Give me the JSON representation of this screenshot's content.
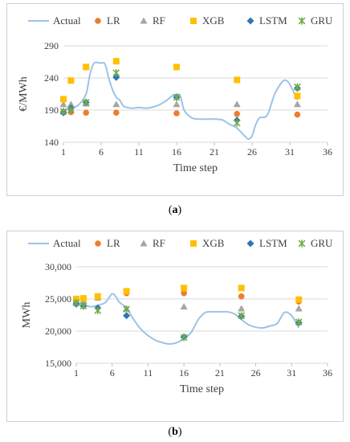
{
  "captions": {
    "a_open": "(",
    "a_letter": "a",
    "a_close": ")",
    "b_open": "(",
    "b_letter": "b",
    "b_close": ")"
  },
  "colors": {
    "Actual": "#9dc3e6",
    "LR": "#ed7d31",
    "RF": "#a5a5a5",
    "XGB": "#ffc000",
    "LSTM": "#2e75b6",
    "GRU": "#70ad47"
  },
  "chart_data": [
    {
      "type": "line+scatter",
      "panel": "a",
      "xlabel": "Time step",
      "ylabel": "€/MWh",
      "xlim": [
        1,
        36
      ],
      "xticks": [
        "1",
        "6",
        "11",
        "16",
        "21",
        "26",
        "31",
        "36"
      ],
      "ylim": [
        140,
        290
      ],
      "yticks": [
        "140",
        "190",
        "240",
        "290"
      ],
      "legend_position": "top",
      "grid": "horizontal",
      "legend": [
        "Actual",
        "LR",
        "RF",
        "XGB",
        "LSTM",
        "GRU"
      ],
      "actual": {
        "name": "Actual",
        "x": [
          1,
          2,
          3,
          4,
          4.5,
          5,
          5.5,
          6,
          6.5,
          7,
          7.5,
          8,
          8.5,
          9,
          10,
          11,
          12,
          13,
          14,
          15,
          15.5,
          16,
          16.5,
          17,
          18,
          19,
          20,
          21,
          22,
          22.5,
          23,
          24,
          25,
          25.5,
          26,
          26.5,
          27,
          28,
          29,
          30,
          30.5,
          31,
          32
        ],
        "y": [
          188,
          193,
          198,
          215,
          245,
          262,
          264,
          263,
          262,
          240,
          222,
          210,
          205,
          196,
          193,
          194,
          193,
          195,
          200,
          208,
          213,
          214,
          212,
          190,
          178,
          176,
          176,
          176,
          175,
          172,
          168,
          162,
          150,
          145,
          150,
          168,
          178,
          182,
          215,
          234,
          236,
          230,
          206
        ]
      },
      "series": [
        {
          "name": "LR",
          "x": [
            1,
            2,
            4,
            8,
            16,
            24,
            32
          ],
          "y": [
            187,
            187,
            186,
            186,
            185,
            184,
            183
          ]
        },
        {
          "name": "RF",
          "x": [
            1,
            2,
            4,
            8,
            16,
            24,
            32
          ],
          "y": [
            199,
            199,
            200,
            199,
            199,
            199,
            199
          ]
        },
        {
          "name": "XGB",
          "x": [
            1,
            2,
            4,
            8,
            16,
            24,
            32
          ],
          "y": [
            207,
            236,
            257,
            266,
            257,
            237,
            212
          ]
        },
        {
          "name": "LSTM",
          "x": [
            1,
            2,
            4,
            8,
            16,
            24,
            32
          ],
          "y": [
            186,
            193,
            202,
            241,
            210,
            174,
            224
          ]
        },
        {
          "name": "GRU",
          "x": [
            1,
            2,
            4,
            8,
            16,
            24,
            32
          ],
          "y": [
            188,
            190,
            202,
            248,
            210,
            170,
            226
          ]
        }
      ]
    },
    {
      "type": "line+scatter",
      "panel": "b",
      "xlabel": "Time step",
      "ylabel": "MWh",
      "xlim": [
        1,
        36
      ],
      "xticks": [
        "1",
        "6",
        "11",
        "16",
        "21",
        "26",
        "31",
        "36"
      ],
      "ylim": [
        15000,
        30000
      ],
      "yticks": [
        "15,000",
        "20,000",
        "25,000",
        "30,000"
      ],
      "legend_position": "top",
      "grid": "horizontal",
      "legend": [
        "Actual",
        "LR",
        "RF",
        "XGB",
        "LSTM",
        "GRU"
      ],
      "actual": {
        "name": "Actual",
        "x": [
          1,
          2,
          3,
          4,
          5,
          5.5,
          6,
          6.5,
          7,
          8,
          9,
          10,
          11,
          12,
          13,
          14,
          15,
          16,
          17,
          18,
          19,
          20,
          21,
          22,
          23,
          24,
          25,
          26,
          27,
          28,
          29,
          30,
          31,
          32
        ],
        "y": [
          24300,
          24100,
          23800,
          24000,
          24400,
          25100,
          25800,
          25400,
          24500,
          23600,
          21800,
          20300,
          19300,
          18600,
          18200,
          18000,
          18200,
          18800,
          19800,
          21800,
          22900,
          23000,
          23000,
          23000,
          22700,
          21800,
          21000,
          20600,
          20500,
          20800,
          21200,
          22900,
          22400,
          20500
        ]
      },
      "series": [
        {
          "name": "LR",
          "x": [
            1,
            2,
            4,
            8,
            16,
            24,
            32
          ],
          "y": [
            24700,
            24800,
            25200,
            25900,
            25900,
            25400,
            24600
          ]
        },
        {
          "name": "RF",
          "x": [
            1,
            2,
            4,
            8,
            16,
            24,
            32
          ],
          "y": [
            24800,
            24700,
            25200,
            23500,
            23800,
            23500,
            23500
          ]
        },
        {
          "name": "XGB",
          "x": [
            1,
            2,
            4,
            8,
            16,
            24,
            32
          ],
          "y": [
            25000,
            25100,
            25400,
            26200,
            26700,
            26700,
            24900
          ]
        },
        {
          "name": "LSTM",
          "x": [
            1,
            2,
            4,
            8,
            16,
            24,
            32
          ],
          "y": [
            24200,
            23900,
            23600,
            22400,
            19100,
            22300,
            21300
          ]
        },
        {
          "name": "GRU",
          "x": [
            1,
            2,
            4,
            8,
            16,
            24,
            32
          ],
          "y": [
            24400,
            23900,
            23200,
            23400,
            19000,
            22400,
            21400
          ]
        }
      ]
    }
  ]
}
